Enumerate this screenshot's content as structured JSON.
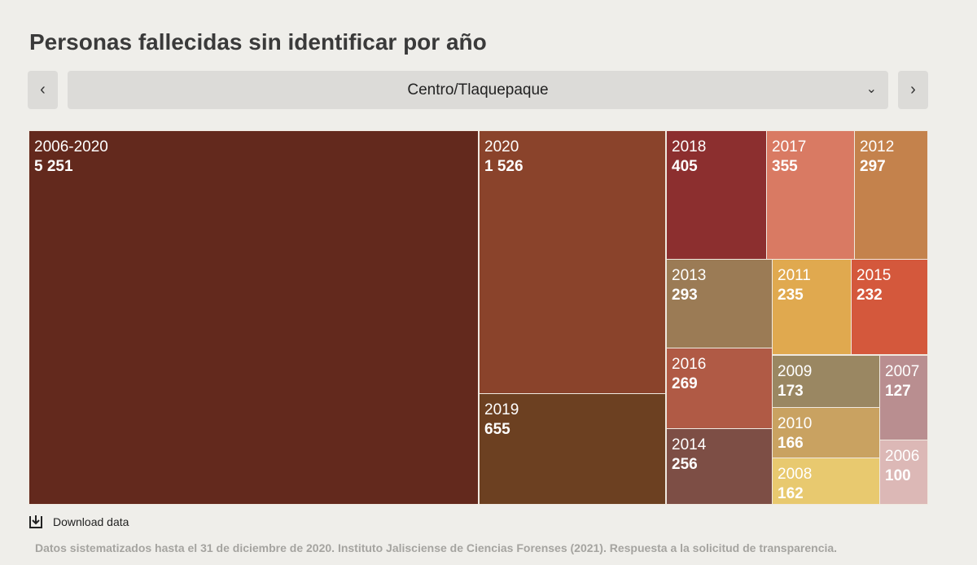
{
  "title": "Personas fallecidas sin identificar por año",
  "nav": {
    "prev_icon": "chevron-left-icon",
    "next_icon": "chevron-right-icon",
    "selected": "Centro/Tlaquepaque"
  },
  "chart_data": {
    "type": "treemap",
    "items": [
      {
        "label": "2006-2020",
        "value": "5 251",
        "color": "#63291d"
      },
      {
        "label": "2020",
        "value": "1 526",
        "color": "#8a432b"
      },
      {
        "label": "2019",
        "value": "655",
        "color": "#6c4021"
      },
      {
        "label": "2018",
        "value": "405",
        "color": "#8c2f2f"
      },
      {
        "label": "2017",
        "value": "355",
        "color": "#d97a63"
      },
      {
        "label": "2012",
        "value": "297",
        "color": "#c4824c"
      },
      {
        "label": "2013",
        "value": "293",
        "color": "#9b7b55"
      },
      {
        "label": "2011",
        "value": "235",
        "color": "#e0a94f"
      },
      {
        "label": "2015",
        "value": "232",
        "color": "#d4583c"
      },
      {
        "label": "2016",
        "value": "269",
        "color": "#b05a45"
      },
      {
        "label": "2014",
        "value": "256",
        "color": "#7d4e45"
      },
      {
        "label": "2009",
        "value": "173",
        "color": "#9a8762"
      },
      {
        "label": "2010",
        "value": "166",
        "color": "#c9a261"
      },
      {
        "label": "2008",
        "value": "162",
        "color": "#e8c96f"
      },
      {
        "label": "2007",
        "value": "127",
        "color": "#b98e90"
      },
      {
        "label": "2006",
        "value": "100",
        "color": "#dcb8b6"
      }
    ]
  },
  "download": {
    "icon": "download-icon",
    "label": "Download data"
  },
  "source": "Datos sistematizados hasta el 31 de diciembre de 2020. Instituto Jalisciense de Ciencias Forenses (2021). Respuesta a la solicitud de transparencia."
}
